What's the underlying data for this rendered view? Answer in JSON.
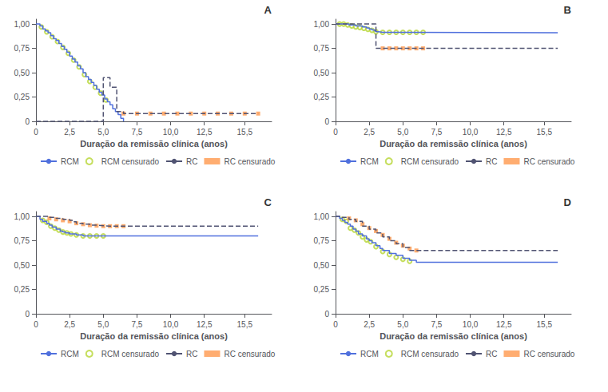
{
  "chart_data": [
    {
      "type": "line",
      "annotation": "A",
      "xlabel": "Duração da remissão clínica (anos)",
      "xlim": [
        0,
        17.5
      ],
      "xticks": [
        0,
        {
          "value": 2.5,
          "label": "2,5"
        },
        {
          "value": 5.0,
          "label": "5,0"
        },
        {
          "value": 7.5,
          "label": "7,5"
        },
        {
          "value": 10.0,
          "label": "10,0"
        },
        {
          "value": 12.5,
          "label": "12,5"
        },
        {
          "value": 15.5,
          "label": "15,5"
        }
      ],
      "ylim": [
        0,
        1.05
      ],
      "yticks": [
        0,
        {
          "value": 0.25,
          "label": "0,25"
        },
        {
          "value": 0.5,
          "label": "0,50"
        },
        {
          "value": 0.75,
          "label": "0,75"
        },
        {
          "value": 1.0,
          "label": "1,00"
        }
      ],
      "grid": false,
      "legend": "bottom",
      "series": [
        {
          "name": "RCM",
          "type": "step",
          "line_style": "solid",
          "x": [
            0,
            0.3,
            0.5,
            0.7,
            0.9,
            1.1,
            1.3,
            1.5,
            1.7,
            1.9,
            2.1,
            2.3,
            2.5,
            2.7,
            2.9,
            3.1,
            3.3,
            3.5,
            3.7,
            3.9,
            4.1,
            4.3,
            4.5,
            4.7,
            4.9,
            5.1,
            5.3,
            5.5,
            5.7,
            5.9,
            6.1,
            6.3,
            6.5
          ],
          "values": [
            1.0,
            0.98,
            0.95,
            0.93,
            0.91,
            0.88,
            0.85,
            0.83,
            0.8,
            0.77,
            0.74,
            0.71,
            0.67,
            0.64,
            0.61,
            0.57,
            0.54,
            0.5,
            0.46,
            0.43,
            0.4,
            0.37,
            0.33,
            0.3,
            0.27,
            0.23,
            0.2,
            0.17,
            0.13,
            0.1,
            0.07,
            0.03,
            0.0
          ]
        },
        {
          "name": "RCM censurado",
          "type": "scatter",
          "marker": "open_circle",
          "x": [
            0.4,
            0.8,
            1.2,
            1.6,
            2.0,
            2.4,
            2.8,
            3.2,
            3.6,
            4.0,
            4.4,
            4.8,
            5.2
          ],
          "values": [
            0.97,
            0.92,
            0.87,
            0.82,
            0.76,
            0.7,
            0.63,
            0.56,
            0.48,
            0.41,
            0.35,
            0.29,
            0.22
          ]
        },
        {
          "name": "RC",
          "type": "step",
          "line_style": "dashed",
          "x": [
            0,
            5.0,
            5.0,
            5.5,
            5.5,
            6.0,
            6.0,
            6.5,
            16.5
          ],
          "values": [
            0,
            0,
            0.45,
            0.45,
            0.35,
            0.35,
            0.1,
            0.08,
            0.08
          ]
        },
        {
          "name": "RC censurado",
          "type": "scatter",
          "marker": "square",
          "x": [
            6.5,
            7.5,
            8.5,
            9.5,
            10.5,
            11.5,
            12.5,
            13.5,
            14.5,
            15.5,
            16.5
          ],
          "values": [
            0.08,
            0.08,
            0.08,
            0.08,
            0.08,
            0.08,
            0.08,
            0.08,
            0.08,
            0.08,
            0.08
          ]
        }
      ]
    },
    {
      "type": "line",
      "annotation": "B",
      "xlabel": "Duração da remissão clínica (anos)",
      "xlim": [
        0,
        17.5
      ],
      "xticks": [
        0,
        {
          "value": 2.5,
          "label": "2,5"
        },
        {
          "value": 5.0,
          "label": "5,0"
        },
        {
          "value": 7.5,
          "label": "7,5"
        },
        {
          "value": 10.0,
          "label": "10,0"
        },
        {
          "value": 12.5,
          "label": "12,5"
        },
        {
          "value": 15.5,
          "label": "15,5"
        }
      ],
      "ylim": [
        0,
        1.05
      ],
      "yticks": [
        0,
        {
          "value": 0.25,
          "label": "0,25"
        },
        {
          "value": 0.5,
          "label": "0,50"
        },
        {
          "value": 0.75,
          "label": "0,75"
        },
        {
          "value": 1.0,
          "label": "1,00"
        }
      ],
      "grid": false,
      "legend": "bottom",
      "series": [
        {
          "name": "RCM",
          "type": "step",
          "line_style": "solid",
          "x": [
            0,
            0.5,
            1.0,
            1.5,
            2.0,
            2.3,
            2.5,
            2.7,
            2.9,
            3.0,
            3.2,
            3.5,
            16.5
          ],
          "values": [
            1.0,
            1.0,
            0.99,
            0.98,
            0.97,
            0.96,
            0.95,
            0.94,
            0.93,
            0.92,
            0.915,
            0.91,
            0.91
          ]
        },
        {
          "name": "RCM censurado",
          "type": "scatter",
          "marker": "open_circle",
          "x": [
            0.3,
            0.6,
            0.9,
            1.2,
            1.5,
            1.8,
            2.1,
            2.4,
            2.7,
            3.0,
            3.5,
            4.0,
            4.5,
            5.0,
            5.5,
            6.0,
            6.5
          ],
          "values": [
            1.0,
            1.0,
            0.99,
            0.98,
            0.97,
            0.965,
            0.955,
            0.945,
            0.935,
            0.92,
            0.915,
            0.915,
            0.915,
            0.915,
            0.915,
            0.915,
            0.915
          ]
        },
        {
          "name": "RC",
          "type": "step",
          "line_style": "dashed",
          "x": [
            0,
            1.0,
            2.0,
            3.0,
            3.0,
            5.0,
            5.0,
            6.5,
            16.5
          ],
          "values": [
            1.0,
            1.0,
            1.0,
            1.0,
            0.75,
            0.75,
            0.75,
            0.75,
            0.75
          ]
        },
        {
          "name": "RC censurado",
          "type": "scatter",
          "marker": "square",
          "x": [
            3.5,
            4.0,
            4.5,
            5.0,
            5.5,
            6.0,
            6.5
          ],
          "values": [
            0.75,
            0.75,
            0.75,
            0.75,
            0.75,
            0.75,
            0.75
          ]
        }
      ]
    },
    {
      "type": "line",
      "annotation": "C",
      "xlabel": "Duração da remissão clínica (anos)",
      "xlim": [
        0,
        17.5
      ],
      "xticks": [
        0,
        {
          "value": 2.5,
          "label": "2,5"
        },
        {
          "value": 5.0,
          "label": "5,0"
        },
        {
          "value": 7.5,
          "label": "7,5"
        },
        {
          "value": 10.0,
          "label": "10,0"
        },
        {
          "value": 12.5,
          "label": "12,5"
        },
        {
          "value": 15.5,
          "label": "15,5"
        }
      ],
      "ylim": [
        0,
        1.05
      ],
      "yticks": [
        0,
        {
          "value": 0.25,
          "label": "0,25"
        },
        {
          "value": 0.5,
          "label": "0,50"
        },
        {
          "value": 0.75,
          "label": "0,75"
        },
        {
          "value": 1.0,
          "label": "1,00"
        }
      ],
      "grid": false,
      "legend": "bottom",
      "series": [
        {
          "name": "RCM",
          "type": "step",
          "line_style": "solid",
          "x": [
            0,
            0.3,
            0.5,
            0.8,
            1.0,
            1.2,
            1.5,
            1.8,
            2.0,
            2.2,
            2.5,
            3.0,
            3.5,
            4.0,
            4.5,
            5.0,
            5.2,
            16.5
          ],
          "values": [
            1.0,
            0.97,
            0.95,
            0.93,
            0.91,
            0.89,
            0.87,
            0.85,
            0.84,
            0.83,
            0.82,
            0.81,
            0.8,
            0.8,
            0.8,
            0.8,
            0.8,
            0.8
          ]
        },
        {
          "name": "RCM censurado",
          "type": "scatter",
          "marker": "open_circle",
          "x": [
            0.5,
            0.8,
            1.1,
            1.4,
            1.7,
            2.0,
            2.3,
            2.6,
            3.0,
            3.5,
            4.0,
            4.5,
            5.0
          ],
          "values": [
            0.96,
            0.94,
            0.9,
            0.88,
            0.86,
            0.84,
            0.83,
            0.82,
            0.81,
            0.8,
            0.8,
            0.8,
            0.8
          ]
        },
        {
          "name": "RC",
          "type": "step",
          "line_style": "dashed",
          "x": [
            0,
            0.5,
            1.0,
            1.5,
            2.0,
            2.5,
            2.8,
            3.0,
            3.5,
            4.0,
            4.5,
            5.0,
            5.5,
            6.0,
            6.5,
            16.5
          ],
          "values": [
            1.0,
            1.0,
            0.99,
            0.98,
            0.97,
            0.96,
            0.945,
            0.93,
            0.92,
            0.91,
            0.905,
            0.9,
            0.9,
            0.9,
            0.9,
            0.9
          ]
        },
        {
          "name": "RC censurado",
          "type": "scatter",
          "marker": "square",
          "x": [
            1.0,
            1.5,
            2.0,
            2.5,
            3.0,
            3.5,
            4.0,
            4.5,
            5.0,
            5.5,
            6.0,
            6.5
          ],
          "values": [
            0.98,
            0.97,
            0.96,
            0.95,
            0.93,
            0.92,
            0.91,
            0.905,
            0.9,
            0.9,
            0.9,
            0.9
          ]
        }
      ]
    },
    {
      "type": "line",
      "annotation": "D",
      "xlabel": "Duração da remissão clínica (anos)",
      "xlim": [
        0,
        17.5
      ],
      "xticks": [
        0,
        {
          "value": 2.5,
          "label": "2,5"
        },
        {
          "value": 5.0,
          "label": "5,0"
        },
        {
          "value": 7.5,
          "label": "7,5"
        },
        {
          "value": 10.0,
          "label": "10,0"
        },
        {
          "value": 12.5,
          "label": "12,5"
        },
        {
          "value": 15.5,
          "label": "15,5"
        }
      ],
      "ylim": [
        0,
        1.05
      ],
      "yticks": [
        0,
        {
          "value": 0.25,
          "label": "0,25"
        },
        {
          "value": 0.5,
          "label": "0,50"
        },
        {
          "value": 0.75,
          "label": "0,75"
        },
        {
          "value": 1.0,
          "label": "1,00"
        }
      ],
      "grid": false,
      "legend": "bottom",
      "series": [
        {
          "name": "RCM",
          "type": "step",
          "line_style": "solid",
          "x": [
            0,
            0.3,
            0.5,
            0.7,
            0.9,
            1.1,
            1.3,
            1.5,
            1.7,
            2.0,
            2.3,
            2.5,
            2.7,
            3.0,
            3.3,
            3.5,
            4.0,
            4.5,
            5.0,
            5.5,
            6.0,
            16.5
          ],
          "values": [
            1.0,
            0.98,
            0.96,
            0.94,
            0.92,
            0.9,
            0.87,
            0.85,
            0.82,
            0.8,
            0.77,
            0.75,
            0.73,
            0.7,
            0.67,
            0.65,
            0.62,
            0.6,
            0.57,
            0.55,
            0.53,
            0.53
          ]
        },
        {
          "name": "RCM censurado",
          "type": "scatter",
          "marker": "open_circle",
          "x": [
            0.5,
            0.8,
            1.1,
            1.4,
            1.7,
            2.0,
            2.3,
            2.6,
            3.0,
            3.5,
            4.0,
            4.5,
            5.0,
            5.5
          ],
          "values": [
            0.97,
            0.95,
            0.88,
            0.86,
            0.83,
            0.79,
            0.76,
            0.74,
            0.69,
            0.64,
            0.61,
            0.58,
            0.56,
            0.54
          ]
        },
        {
          "name": "RC",
          "type": "step",
          "line_style": "dashed",
          "x": [
            0,
            0.5,
            1.0,
            1.5,
            2.0,
            2.5,
            3.0,
            3.5,
            4.0,
            4.5,
            5.0,
            5.5,
            16.5
          ],
          "values": [
            1.0,
            0.99,
            0.97,
            0.95,
            0.9,
            0.87,
            0.83,
            0.79,
            0.75,
            0.72,
            0.68,
            0.65,
            0.65
          ]
        },
        {
          "name": "RC censurado",
          "type": "scatter",
          "marker": "square",
          "x": [
            1.0,
            1.5,
            2.0,
            2.5,
            3.0,
            3.5,
            4.0,
            4.5,
            5.0,
            5.5,
            6.0
          ],
          "values": [
            0.98,
            0.96,
            0.92,
            0.88,
            0.85,
            0.81,
            0.77,
            0.73,
            0.7,
            0.67,
            0.65
          ]
        }
      ]
    }
  ]
}
